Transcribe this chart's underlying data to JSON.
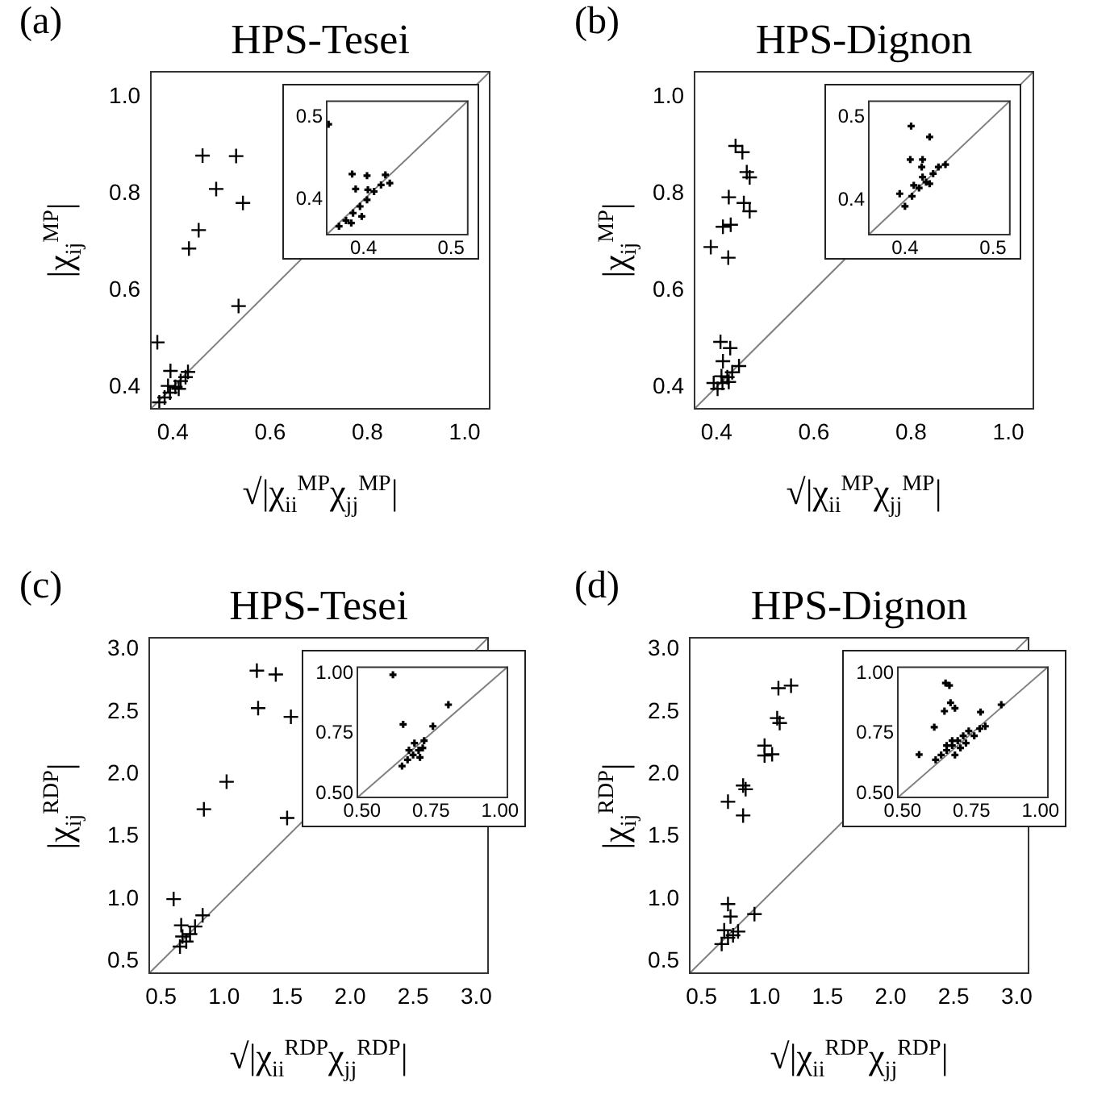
{
  "chart_data": [
    {
      "type": "scatter",
      "title": "HPS-Tesei",
      "annotations": [
        "(a)"
      ],
      "xlabel": "√|χ$_{ii}$$^{MP}$χ$_{jj}$$^{MP}$|",
      "ylabel": "|χ$_{ij}$$^{MP}$|",
      "xlim": [
        0.353,
        1.053
      ],
      "ylim": [
        0.353,
        1.053
      ],
      "xticks": [
        0.4,
        0.6,
        0.8,
        {
          "value": 1,
          "label": "1.0"
        }
      ],
      "yticks": [
        0.4,
        0.6,
        0.8,
        {
          "value": 1,
          "label": "1.0"
        }
      ],
      "series": [
        {
          "type": "line",
          "color": "#808080",
          "x": [
            0.353,
            1.053
          ],
          "values": [
            0.353,
            1.053
          ]
        },
        {
          "color": "#000000",
          "marker": "cross",
          "x": [
            0.461,
            0.53,
            0.489,
            0.544,
            0.453,
            0.433,
            0.535,
            0.368,
            0.395,
            0.431,
            0.372,
            0.383,
            0.394,
            0.405,
            0.416,
            0.426,
            0.39,
            0.412
          ],
          "values": [
            0.878,
            0.877,
            0.809,
            0.78,
            0.724,
            0.686,
            0.567,
            0.492,
            0.433,
            0.431,
            0.368,
            0.378,
            0.388,
            0.4,
            0.412,
            0.42,
            0.402,
            0.396
          ]
        }
      ]
    },
    {
      "type": "scatter",
      "xlim": [
        0.357,
        0.52
      ],
      "ylim": [
        0.357,
        0.52
      ],
      "xticks": [
        0.4,
        0.5
      ],
      "yticks": [
        0.4,
        0.5
      ],
      "series": [
        {
          "type": "line",
          "color": "#808080",
          "x": [
            0.357,
            0.52
          ],
          "values": [
            0.357,
            0.52
          ]
        },
        {
          "color": "#000000",
          "marker": "cross",
          "x": [
            0.36,
            0.387,
            0.404,
            0.425,
            0.391,
            0.372,
            0.38,
            0.388,
            0.396,
            0.404,
            0.412,
            0.42,
            0.405,
            0.386,
            0.398,
            0.43
          ],
          "values": [
            0.491,
            0.431,
            0.429,
            0.43,
            0.413,
            0.368,
            0.375,
            0.384,
            0.392,
            0.4,
            0.41,
            0.418,
            0.412,
            0.372,
            0.38,
            0.42
          ]
        }
      ]
    },
    {
      "type": "scatter",
      "title": "HPS-Dignon",
      "annotations": [
        "(b)"
      ],
      "xlabel": "√|χ$_{ii}$$^{MP}$χ$_{jj}$$^{MP}$|",
      "ylabel": "|χ$_{ij}$$^{MP}$|",
      "xlim": [
        0.353,
        1.053
      ],
      "ylim": [
        0.353,
        1.053
      ],
      "xticks": [
        0.4,
        0.6,
        0.8,
        {
          "value": 1,
          "label": "1.0"
        }
      ],
      "yticks": [
        0.4,
        0.6,
        0.8,
        {
          "value": 1,
          "label": "1.0"
        }
      ],
      "series": [
        {
          "type": "line",
          "color": "#808080",
          "x": [
            0.353,
            1.053
          ],
          "values": [
            0.353,
            1.053
          ]
        },
        {
          "color": "#000000",
          "marker": "cross",
          "x": [
            0.439,
            0.453,
            0.462,
            0.468,
            0.425,
            0.456,
            0.468,
            0.413,
            0.429,
            0.388,
            0.424,
            0.408,
            0.428,
            0.413,
            0.446,
            0.394,
            0.402,
            0.412,
            0.422,
            0.432,
            0.41,
            0.425
          ],
          "values": [
            0.898,
            0.885,
            0.844,
            0.833,
            0.792,
            0.78,
            0.763,
            0.731,
            0.735,
            0.689,
            0.667,
            0.493,
            0.48,
            0.453,
            0.443,
            0.408,
            0.396,
            0.408,
            0.42,
            0.43,
            0.422,
            0.41
          ]
        }
      ]
    },
    {
      "type": "scatter",
      "xlim": [
        0.358,
        0.52
      ],
      "ylim": [
        0.358,
        0.52
      ],
      "xticks": [
        0.4,
        0.5
      ],
      "yticks": [
        0.4,
        0.5
      ],
      "series": [
        {
          "type": "line",
          "color": "#808080",
          "x": [
            0.358,
            0.52
          ],
          "values": [
            0.358,
            0.52
          ]
        },
        {
          "color": "#000000",
          "marker": "cross",
          "x": [
            0.407,
            0.428,
            0.406,
            0.42,
            0.446,
            0.419,
            0.394,
            0.4,
            0.408,
            0.416,
            0.424,
            0.432,
            0.438,
            0.41,
            0.42,
            0.428
          ],
          "values": [
            0.489,
            0.476,
            0.449,
            0.449,
            0.443,
            0.44,
            0.408,
            0.393,
            0.405,
            0.415,
            0.422,
            0.432,
            0.44,
            0.418,
            0.428,
            0.42
          ]
        }
      ]
    },
    {
      "type": "scatter",
      "title": "HPS-Tesei",
      "annotations": [
        "(c)"
      ],
      "xlabel": "√|χ$_{ii}$$^{RDP}$χ$_{jj}$$^{RDP}$|",
      "ylabel": "|χ$_{ij}$$^{RDP}$|",
      "xlim": [
        0.4,
        3.1
      ],
      "ylim": [
        0.4,
        3.1
      ],
      "xticks": [
        0.5,
        {
          "value": 1,
          "label": "1.0"
        },
        1.5,
        {
          "value": 2,
          "label": "2.0"
        },
        2.5,
        {
          "value": 3,
          "label": "3.0"
        }
      ],
      "yticks": [
        0.5,
        {
          "value": 1,
          "label": "1.0"
        },
        1.5,
        {
          "value": 2,
          "label": "2.0"
        },
        2.5,
        {
          "value": 3,
          "label": "3.0"
        }
      ],
      "series": [
        {
          "type": "line",
          "color": "#808080",
          "x": [
            0.4,
            3.1
          ],
          "values": [
            0.4,
            3.1
          ]
        },
        {
          "color": "#000000",
          "marker": "cross",
          "x": [
            1.26,
            1.41,
            1.27,
            1.53,
            1.02,
            0.84,
            1.5,
            0.6,
            0.66,
            0.83,
            0.77,
            0.65,
            0.7,
            0.73,
            0.67
          ],
          "values": [
            2.83,
            2.8,
            2.53,
            2.46,
            1.94,
            1.72,
            1.65,
            1.0,
            0.79,
            0.87,
            0.78,
            0.62,
            0.66,
            0.72,
            0.7
          ]
        }
      ]
    },
    {
      "type": "scatter",
      "xlim": [
        0.48,
        1.03
      ],
      "ylim": [
        0.48,
        1.03
      ],
      "xticks": [
        {
          "value": 0.5,
          "label": "0.50"
        },
        0.75,
        {
          "value": 1,
          "label": "1.00"
        }
      ],
      "yticks": [
        {
          "value": 0.5,
          "label": "0.50"
        },
        0.75,
        {
          "value": 1,
          "label": "1.00"
        }
      ],
      "series": [
        {
          "type": "line",
          "color": "#808080",
          "x": [
            0.48,
            1.03
          ],
          "values": [
            0.48,
            1.03
          ]
        },
        {
          "color": "#000000",
          "marker": "cross",
          "x": [
            0.612,
            0.649,
            0.813,
            0.757,
            0.645,
            0.665,
            0.685,
            0.705,
            0.725,
            0.67,
            0.69,
            0.71,
            0.72
          ],
          "values": [
            0.995,
            0.788,
            0.87,
            0.78,
            0.614,
            0.64,
            0.66,
            0.68,
            0.72,
            0.68,
            0.71,
            0.65,
            0.69
          ]
        }
      ]
    },
    {
      "type": "scatter",
      "title": "HPS-Dignon",
      "annotations": [
        "(d)"
      ],
      "xlabel": "√|χ$_{ii}$$^{RDP}$χ$_{jj}$$^{RDP}$|",
      "ylabel": "|χ$_{ij}$$^{RDP}$|",
      "xlim": [
        0.4,
        3.1
      ],
      "ylim": [
        0.4,
        3.1
      ],
      "xticks": [
        0.5,
        {
          "value": 1,
          "label": "1.0"
        },
        1.5,
        {
          "value": 2,
          "label": "2.0"
        },
        2.5,
        {
          "value": 3,
          "label": "3.0"
        }
      ],
      "yticks": [
        0.5,
        {
          "value": 1,
          "label": "1.0"
        },
        1.5,
        {
          "value": 2,
          "label": "2.0"
        },
        2.5,
        {
          "value": 3,
          "label": "3.0"
        }
      ],
      "series": [
        {
          "type": "line",
          "color": "#808080",
          "x": [
            0.4,
            3.1
          ],
          "values": [
            0.4,
            3.1
          ]
        },
        {
          "color": "#000000",
          "marker": "cross",
          "x": [
            1.11,
            1.21,
            1.1,
            1.12,
            1.0,
            1.06,
            1.0,
            0.83,
            0.85,
            0.71,
            0.83,
            0.71,
            0.73,
            0.92,
            0.79,
            0.66,
            0.71,
            0.68,
            0.75
          ],
          "values": [
            2.69,
            2.71,
            2.45,
            2.41,
            2.23,
            2.16,
            2.15,
            1.91,
            1.88,
            1.78,
            1.67,
            0.96,
            0.86,
            0.88,
            0.74,
            0.64,
            0.69,
            0.75,
            0.71
          ]
        }
      ]
    },
    {
      "type": "scatter",
      "xlim": [
        0.48,
        1.03
      ],
      "ylim": [
        0.48,
        1.03
      ],
      "xticks": [
        {
          "value": 0.5,
          "label": "0.50"
        },
        0.75,
        {
          "value": 1,
          "label": "1.00"
        }
      ],
      "yticks": [
        {
          "value": 0.5,
          "label": "0.50"
        },
        0.75,
        {
          "value": 1,
          "label": "1.00"
        }
      ],
      "series": [
        {
          "type": "line",
          "color": "#808080",
          "x": [
            0.48,
            1.03
          ],
          "values": [
            0.48,
            1.03
          ]
        },
        {
          "color": "#000000",
          "marker": "cross",
          "x": [
            0.656,
            0.67,
            0.674,
            0.652,
            0.69,
            0.858,
            0.783,
            0.615,
            0.56,
            0.62,
            0.64,
            0.66,
            0.68,
            0.7,
            0.72,
            0.74,
            0.69,
            0.71,
            0.73,
            0.68,
            0.66,
            0.76,
            0.78,
            0.8
          ],
          "values": [
            0.96,
            0.95,
            0.878,
            0.843,
            0.855,
            0.87,
            0.839,
            0.776,
            0.662,
            0.64,
            0.66,
            0.68,
            0.7,
            0.72,
            0.74,
            0.76,
            0.66,
            0.69,
            0.71,
            0.72,
            0.7,
            0.74,
            0.77,
            0.78
          ]
        }
      ]
    }
  ]
}
